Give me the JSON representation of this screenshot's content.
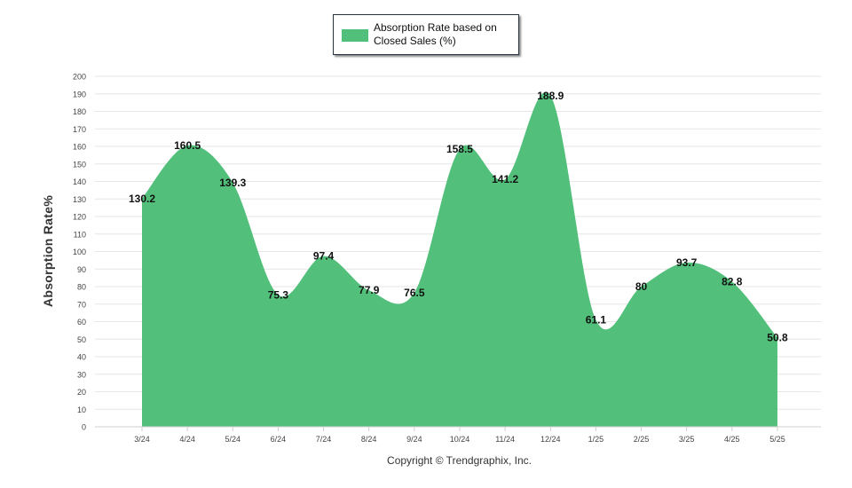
{
  "chart_data": {
    "type": "area",
    "x": [
      "3/24",
      "4/24",
      "5/24",
      "6/24",
      "7/24",
      "8/24",
      "9/24",
      "10/24",
      "11/24",
      "12/24",
      "1/25",
      "2/25",
      "3/25",
      "4/25",
      "5/25"
    ],
    "series": [
      {
        "name": "Absorption Rate based on Closed Sales (%)",
        "values": [
          130.2,
          160.5,
          139.3,
          75.3,
          97.4,
          77.9,
          76.5,
          158.5,
          141.2,
          188.9,
          61.1,
          80,
          93.7,
          82.8,
          50.8
        ],
        "labels": [
          "130.2",
          "160.5",
          "139.3",
          "75.3",
          "97.4",
          "77.9",
          "76.5",
          "158.5",
          "141.2",
          "188.9",
          "61.1",
          "80",
          "93.7",
          "82.8",
          "50.8"
        ],
        "color": "#52c07b"
      }
    ],
    "ylabel": "Absorption Rate%",
    "xlabel": "",
    "ylim": [
      0,
      200
    ],
    "yticks": [
      "0",
      "10",
      "20",
      "30",
      "40",
      "50",
      "60",
      "70",
      "80",
      "90",
      "100",
      "110",
      "120",
      "130",
      "140",
      "150",
      "160",
      "170",
      "180",
      "190",
      "200"
    ],
    "grid": true,
    "legend_position": "top-center"
  },
  "footer": {
    "copyright": "Copyright © Trendgraphix, Inc."
  },
  "colors": {
    "area": "#52c07b",
    "grid": "#e6e6e6",
    "axis_text": "#444444"
  }
}
